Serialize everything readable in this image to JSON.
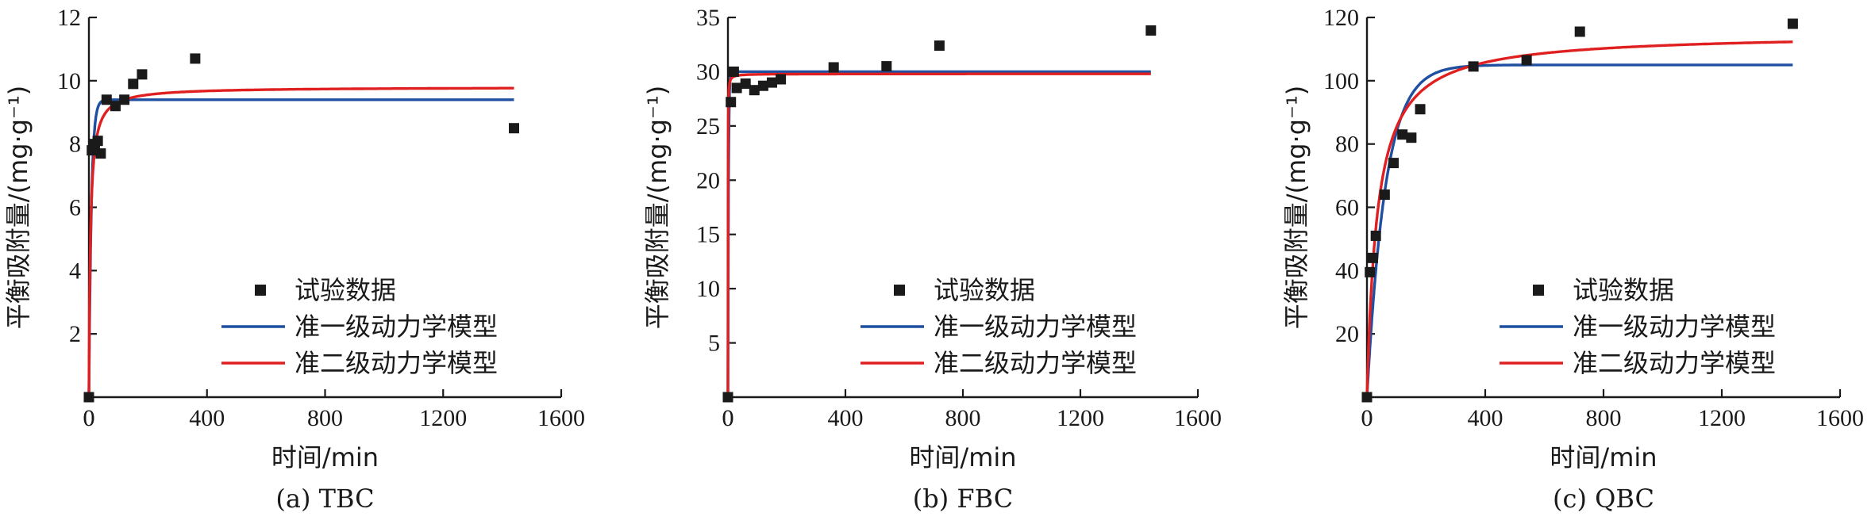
{
  "colors": {
    "model1": "#1f4fa0",
    "model2": "#e02020",
    "marker": "#1a1a1a"
  },
  "chart_data": [
    {
      "type": "scatter",
      "caption": "(a) TBC",
      "xlabel": "时间/min",
      "ylabel": "平衡吸附量/(mg·g⁻¹)",
      "xlim": [
        0,
        1600
      ],
      "ylim": [
        0,
        12
      ],
      "xticks": [
        0,
        400,
        800,
        1200,
        1600
      ],
      "yticks": [
        2,
        4,
        6,
        8,
        10,
        12
      ],
      "xtick_labels": [
        "0",
        "400",
        "800",
        "1200",
        "1600"
      ],
      "ytick_labels": [
        "2",
        "4",
        "6",
        "8",
        "10",
        "12"
      ],
      "legend": [
        "试验数据",
        "准一级动力学模型",
        "准二级动力学模型"
      ],
      "series": [
        {
          "name": "试验数据",
          "kind": "points",
          "x": [
            0,
            10,
            20,
            30,
            40,
            60,
            90,
            120,
            150,
            180,
            360,
            1440
          ],
          "y": [
            0,
            7.8,
            8.0,
            8.1,
            7.7,
            9.4,
            9.2,
            9.4,
            9.9,
            10.2,
            10.7,
            8.5
          ]
        },
        {
          "name": "准一级动力学模型",
          "kind": "model",
          "model": "pfo",
          "qe": 9.4,
          "k": 0.12
        },
        {
          "name": "准二级动力学模型",
          "kind": "model",
          "model": "pso",
          "qe": 9.8,
          "k": 0.02
        }
      ]
    },
    {
      "type": "scatter",
      "caption": "(b) FBC",
      "xlabel": "时间/min",
      "ylabel": "平衡吸附量/(mg·g⁻¹)",
      "xlim": [
        0,
        1600
      ],
      "ylim": [
        0,
        35
      ],
      "xticks": [
        0,
        400,
        800,
        1200,
        1600
      ],
      "yticks": [
        5,
        10,
        15,
        20,
        25,
        30,
        35
      ],
      "xtick_labels": [
        "0",
        "400",
        "800",
        "1200",
        "1600"
      ],
      "ytick_labels": [
        "5",
        "10",
        "15",
        "20",
        "25",
        "30",
        "35"
      ],
      "legend": [
        "试验数据",
        "准一级动力学模型",
        "准二级动力学模型"
      ],
      "series": [
        {
          "name": "试验数据",
          "kind": "points",
          "x": [
            0,
            10,
            20,
            30,
            60,
            90,
            120,
            150,
            180,
            360,
            540,
            720,
            1440
          ],
          "y": [
            0,
            27.2,
            30.0,
            28.5,
            28.9,
            28.3,
            28.7,
            29.0,
            29.3,
            30.4,
            30.5,
            32.4,
            33.8
          ]
        },
        {
          "name": "准一级动力学模型",
          "kind": "model",
          "model": "pfo",
          "qe": 30.0,
          "k": 0.5
        },
        {
          "name": "准二级动力学模型",
          "kind": "model",
          "model": "pso",
          "qe": 29.8,
          "k": 0.2
        }
      ]
    },
    {
      "type": "scatter",
      "caption": "(c) QBC",
      "xlabel": "时间/min",
      "ylabel": "平衡吸附量/(mg·g⁻¹)",
      "xlim": [
        0,
        1600
      ],
      "ylim": [
        0,
        120
      ],
      "xticks": [
        0,
        400,
        800,
        1200,
        1600
      ],
      "yticks": [
        20,
        40,
        60,
        80,
        100,
        120
      ],
      "xtick_labels": [
        "0",
        "400",
        "800",
        "1200",
        "1600"
      ],
      "ytick_labels": [
        "20",
        "40",
        "60",
        "80",
        "100",
        "120"
      ],
      "legend": [
        "试验数据",
        "准一级动力学模型",
        "准二级动力学模型"
      ],
      "series": [
        {
          "name": "试验数据",
          "kind": "points",
          "x": [
            0,
            10,
            20,
            30,
            60,
            90,
            120,
            150,
            180,
            360,
            540,
            720,
            1440
          ],
          "y": [
            0,
            39.5,
            44,
            51,
            64,
            74,
            83,
            82,
            91,
            104.5,
            106.5,
            115.5,
            118
          ]
        },
        {
          "name": "准一级动力学模型",
          "kind": "model",
          "model": "pfo",
          "qe": 105,
          "k": 0.016
        },
        {
          "name": "准二级动力学模型",
          "kind": "model",
          "model": "pso",
          "qe": 115,
          "k": 0.00025
        }
      ]
    }
  ]
}
